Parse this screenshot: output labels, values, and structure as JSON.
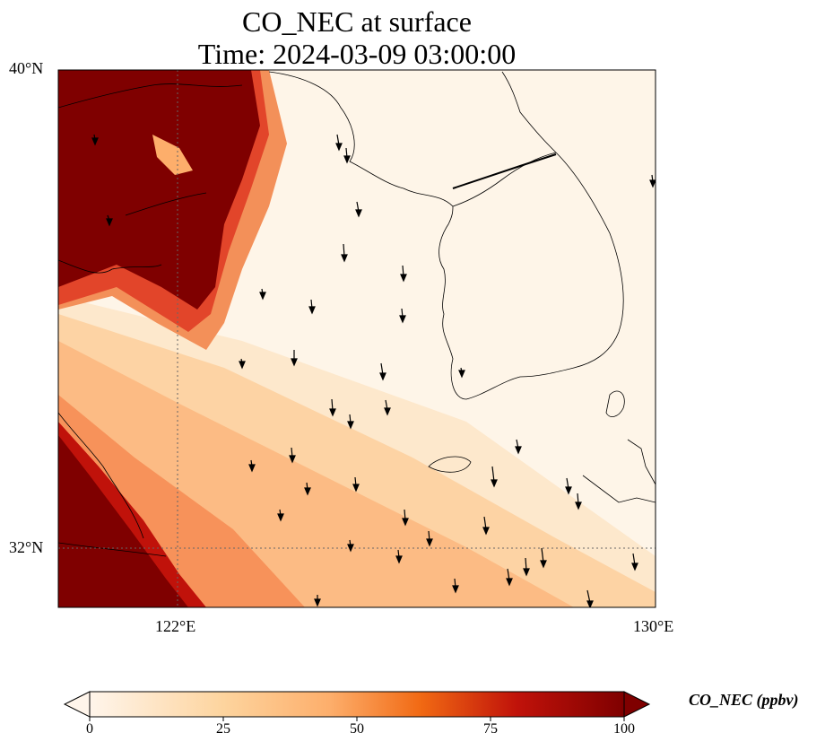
{
  "title": {
    "line1": "CO_NEC at surface",
    "line2": "Time: 2024-03-09 03:00:00"
  },
  "axes": {
    "lat_labels": [
      "40°N",
      "32°N"
    ],
    "lon_labels": [
      "122°E",
      "130°E"
    ],
    "extent": {
      "lon_min": 120,
      "lon_max": 130,
      "lat_min": 31,
      "lat_max": 40
    }
  },
  "colorbar": {
    "label": "CO_NEC (ppbv)",
    "ticks": [
      "0",
      "25",
      "50",
      "75",
      "100"
    ],
    "min": 0,
    "max": 100,
    "colors": [
      "#fff5eb",
      "#fdd49e",
      "#fdae6b",
      "#f16913",
      "#d7301f",
      "#7f0000"
    ]
  },
  "colors": {
    "high": "#7f0000",
    "ocean_low": "#fef5e8"
  }
}
